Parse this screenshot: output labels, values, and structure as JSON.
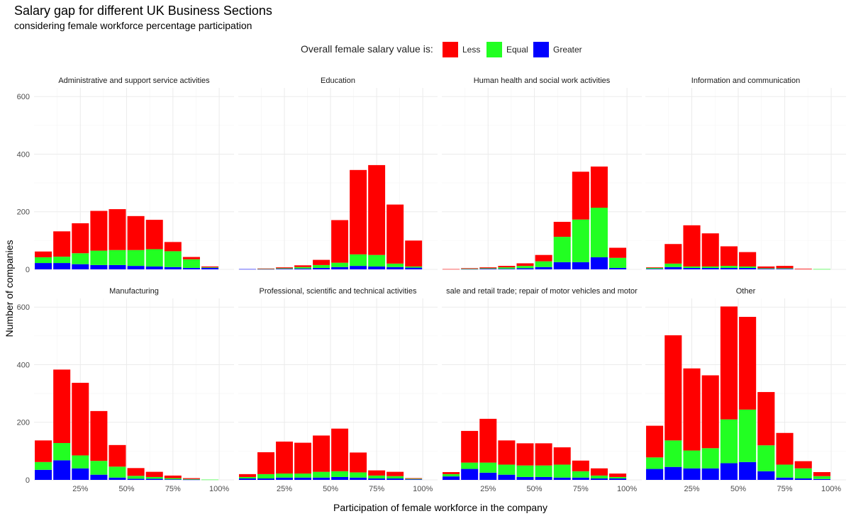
{
  "chart_data": {
    "type": "bar",
    "stacked": true,
    "title": "Salary gap for different UK Business Sections",
    "subtitle": "considering female workforce percentage participation",
    "xlabel": "Participation of female workforce in the company",
    "ylabel": "Number of companies",
    "legend": {
      "title": "Overall female salary value is:",
      "position": "top",
      "items": [
        {
          "name": "Less",
          "color": "#ff0000"
        },
        {
          "name": "Equal",
          "color": "#22ff22"
        },
        {
          "name": "Greater",
          "color": "#0000ff"
        }
      ]
    },
    "x_tick_labels": [
      "25%",
      "50%",
      "75%",
      "100%"
    ],
    "x_tick_values": [
      25,
      50,
      75,
      100
    ],
    "xlim": [
      0,
      108
    ],
    "y_tick_labels": [
      "0",
      "200",
      "400",
      "600"
    ],
    "y_tick_values": [
      0,
      200,
      400,
      600
    ],
    "ylim": [
      0,
      620
    ],
    "grid": true,
    "bin_centers": [
      5,
      15,
      25,
      35,
      45,
      55,
      65,
      75,
      85,
      95
    ],
    "bin_width": 9.2,
    "stack_order": [
      "Greater",
      "Equal",
      "Less"
    ],
    "panels": [
      {
        "name": "Administrative and support service activities",
        "greater": [
          22,
          22,
          18,
          15,
          15,
          12,
          10,
          8,
          5,
          5
        ],
        "equal": [
          20,
          22,
          38,
          50,
          52,
          55,
          60,
          55,
          30,
          2
        ],
        "less": [
          20,
          88,
          104,
          138,
          142,
          118,
          102,
          32,
          8,
          3
        ]
      },
      {
        "name": "Education",
        "greater": [
          1,
          1,
          2,
          3,
          5,
          8,
          12,
          10,
          8,
          6
        ],
        "equal": [
          0,
          1,
          2,
          5,
          10,
          15,
          40,
          40,
          12,
          4
        ],
        "less": [
          0,
          1,
          3,
          6,
          18,
          148,
          293,
          312,
          205,
          90
        ]
      },
      {
        "name": "Human health and social work activities",
        "greater": [
          0,
          1,
          2,
          2,
          4,
          8,
          25,
          25,
          42,
          5
        ],
        "equal": [
          0,
          1,
          2,
          5,
          8,
          20,
          88,
          148,
          172,
          35
        ],
        "less": [
          1,
          2,
          3,
          5,
          9,
          22,
          52,
          166,
          143,
          35
        ]
      },
      {
        "name": "Information and communication",
        "greater": [
          2,
          8,
          5,
          5,
          5,
          5,
          2,
          2,
          0,
          0
        ],
        "equal": [
          3,
          12,
          5,
          5,
          7,
          5,
          2,
          2,
          0,
          1
        ],
        "less": [
          2,
          68,
          143,
          115,
          68,
          50,
          6,
          8,
          2,
          0
        ]
      },
      {
        "name": "Manufacturing",
        "greater": [
          35,
          68,
          40,
          18,
          8,
          4,
          4,
          2,
          1,
          0
        ],
        "equal": [
          27,
          60,
          45,
          48,
          38,
          10,
          6,
          4,
          2,
          1
        ],
        "less": [
          75,
          255,
          252,
          173,
          75,
          27,
          18,
          9,
          3,
          0
        ]
      },
      {
        "name": "Professional, scientific and technical activities",
        "greater": [
          5,
          5,
          8,
          8,
          8,
          10,
          8,
          5,
          5,
          2
        ],
        "equal": [
          5,
          15,
          14,
          14,
          20,
          20,
          18,
          10,
          8,
          2
        ],
        "less": [
          10,
          76,
          111,
          107,
          126,
          148,
          69,
          18,
          15,
          2
        ]
      },
      {
        "name": "sale and retail trade; repair of motor vehicles and motor",
        "greater": [
          12,
          38,
          25,
          18,
          10,
          10,
          8,
          8,
          5,
          5
        ],
        "equal": [
          8,
          22,
          35,
          35,
          40,
          40,
          45,
          22,
          10,
          5
        ],
        "less": [
          7,
          110,
          152,
          84,
          77,
          77,
          60,
          37,
          25,
          12
        ]
      },
      {
        "name": "Other",
        "greater": [
          38,
          45,
          40,
          40,
          58,
          62,
          30,
          8,
          5,
          3
        ],
        "equal": [
          40,
          92,
          62,
          70,
          152,
          182,
          90,
          45,
          35,
          10
        ],
        "less": [
          110,
          365,
          285,
          253,
          392,
          322,
          185,
          110,
          25,
          14
        ]
      }
    ]
  }
}
